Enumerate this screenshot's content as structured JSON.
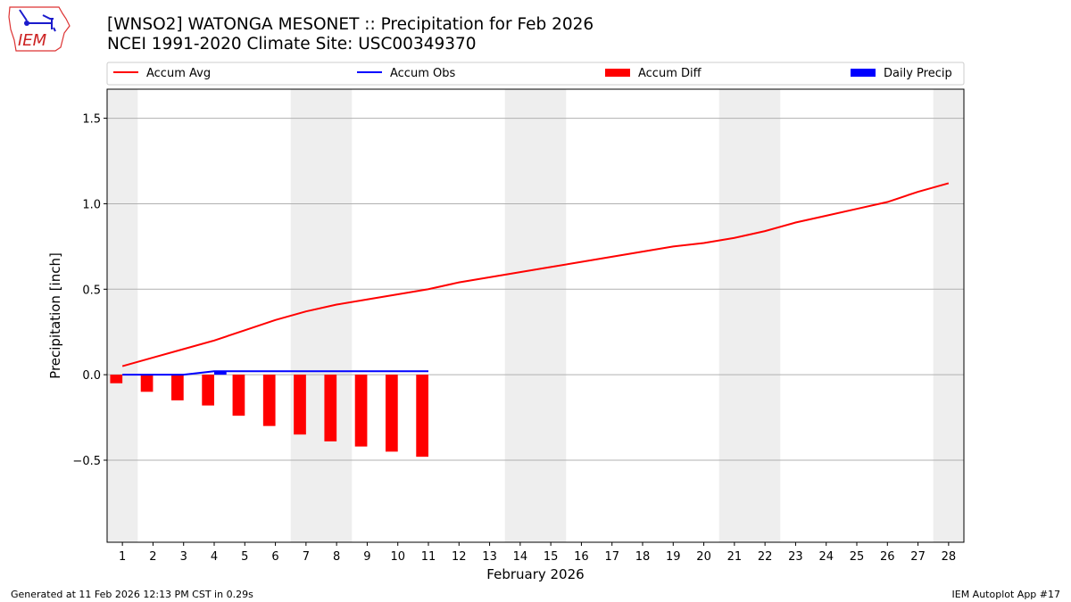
{
  "logo": {
    "text": "IEM"
  },
  "chart_data": {
    "type": "bar",
    "title": "[WNSO2] WATONGA MESONET :: Precipitation for Feb 2026",
    "subtitle": "NCEI 1991-2020 Climate Site: USC00349370",
    "xlabel": "February 2026",
    "ylabel": "Precipitation [inch]",
    "xlim": [
      0.5,
      28.5
    ],
    "ylim": [
      -0.98,
      1.67
    ],
    "yticks": [
      -0.5,
      0.0,
      0.5,
      1.0,
      1.5
    ],
    "ytick_labels": [
      "−0.5",
      "0.0",
      "0.5",
      "1.0",
      "1.5"
    ],
    "xticks": [
      1,
      2,
      3,
      4,
      5,
      6,
      7,
      8,
      9,
      10,
      11,
      12,
      13,
      14,
      15,
      16,
      17,
      18,
      19,
      20,
      21,
      22,
      23,
      24,
      25,
      26,
      27,
      28
    ],
    "grid": "y",
    "legend_placement": "top",
    "weekend_shading_days": [
      1,
      7,
      8,
      14,
      15,
      21,
      22,
      28
    ],
    "shade_color": "#eeeeee",
    "series": [
      {
        "name": "Accum Avg",
        "kind": "line",
        "color": "#ff0000",
        "x": [
          1,
          2,
          3,
          4,
          5,
          6,
          7,
          8,
          9,
          10,
          11,
          12,
          13,
          14,
          15,
          16,
          17,
          18,
          19,
          20,
          21,
          22,
          23,
          24,
          25,
          26,
          27,
          28
        ],
        "values": [
          0.05,
          0.1,
          0.15,
          0.2,
          0.26,
          0.32,
          0.37,
          0.41,
          0.44,
          0.47,
          0.5,
          0.54,
          0.57,
          0.6,
          0.63,
          0.66,
          0.69,
          0.72,
          0.75,
          0.77,
          0.8,
          0.84,
          0.89,
          0.93,
          0.97,
          1.01,
          1.07,
          1.12
        ]
      },
      {
        "name": "Accum Obs",
        "kind": "line",
        "color": "#0000ff",
        "x": [
          1,
          2,
          3,
          4,
          5,
          6,
          7,
          8,
          9,
          10,
          11
        ],
        "values": [
          0,
          0,
          0,
          0.02,
          0.02,
          0.02,
          0.02,
          0.02,
          0.02,
          0.02,
          0.02
        ]
      },
      {
        "name": "Accum Diff",
        "kind": "bar",
        "color": "#ff0000",
        "x": [
          1,
          2,
          3,
          4,
          5,
          6,
          7,
          8,
          9,
          10,
          11
        ],
        "values": [
          -0.05,
          -0.1,
          -0.15,
          -0.18,
          -0.24,
          -0.3,
          -0.35,
          -0.39,
          -0.42,
          -0.45,
          -0.48
        ]
      },
      {
        "name": "Daily Precip",
        "kind": "bar",
        "color": "#0000ff",
        "x": [
          4
        ],
        "values": [
          0.02
        ]
      }
    ]
  },
  "footer": {
    "left": "Generated at 11 Feb 2026 12:13 PM CST in 0.29s",
    "right": "IEM Autoplot App #17"
  }
}
